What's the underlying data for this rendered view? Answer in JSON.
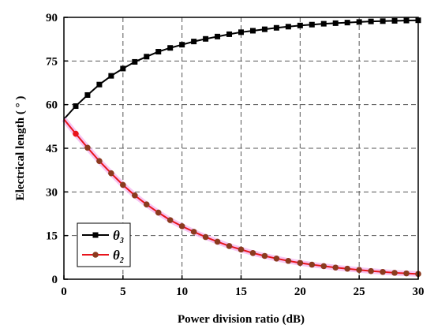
{
  "chart_data": {
    "type": "line",
    "xlabel": "Power division ratio (dB)",
    "ylabel": "Electrical length ( ° )",
    "xlim": [
      0,
      30
    ],
    "ylim": [
      0,
      90
    ],
    "x_ticks": [
      0,
      5,
      10,
      15,
      20,
      25,
      30
    ],
    "y_ticks": [
      0,
      15,
      30,
      45,
      60,
      75,
      90
    ],
    "grid": "dashed",
    "legend_position": "bottom-left",
    "x": [
      0,
      1,
      2,
      3,
      4,
      5,
      6,
      7,
      8,
      9,
      10,
      11,
      12,
      13,
      14,
      15,
      16,
      17,
      18,
      19,
      20,
      21,
      22,
      23,
      24,
      25,
      26,
      27,
      28,
      29,
      30
    ],
    "series": [
      {
        "name": "θ3",
        "legend_main": "θ",
        "legend_sub": "3",
        "color": "#000000",
        "marker": "square",
        "values": [
          55.0,
          59.5,
          63.3,
          66.9,
          69.9,
          72.4,
          74.7,
          76.5,
          78.2,
          79.5,
          80.6,
          81.7,
          82.6,
          83.4,
          84.2,
          84.9,
          85.4,
          85.9,
          86.4,
          86.8,
          87.2,
          87.5,
          87.8,
          88.0,
          88.2,
          88.4,
          88.6,
          88.7,
          88.8,
          88.9,
          89.0
        ]
      },
      {
        "name": "θ2",
        "legend_main": "θ",
        "legend_sub": "2",
        "color": "#e8141c",
        "marker_color": "#8b3a1e",
        "marker": "circle",
        "values": [
          55.0,
          50.0,
          45.2,
          40.6,
          36.4,
          32.4,
          28.8,
          25.7,
          22.9,
          20.3,
          18.2,
          16.3,
          14.5,
          12.9,
          11.4,
          10.2,
          9.0,
          8.0,
          7.1,
          6.3,
          5.6,
          5.0,
          4.5,
          4.0,
          3.6,
          3.2,
          2.8,
          2.5,
          2.2,
          2.0,
          1.8
        ]
      }
    ]
  }
}
